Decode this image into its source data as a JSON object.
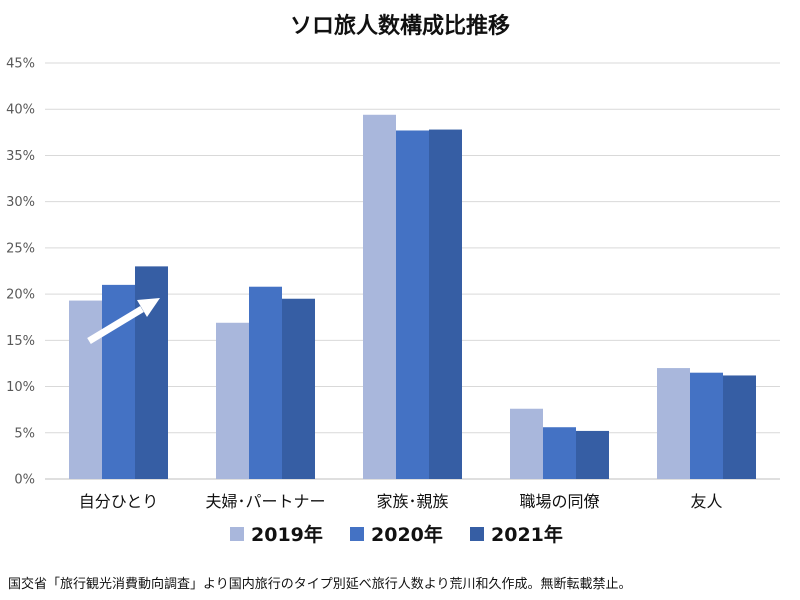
{
  "chart_data": {
    "type": "bar",
    "title": "ソロ旅人数構成比推移",
    "categories": [
      "自分ひとり",
      "夫婦･パートナー",
      "家族･親族",
      "職場の同僚",
      "友人"
    ],
    "series": [
      {
        "name": "2019年",
        "color": "#a9b7dc",
        "values": [
          19.3,
          16.9,
          39.4,
          7.6,
          12.0
        ]
      },
      {
        "name": "2020年",
        "color": "#4472c4",
        "values": [
          21.0,
          20.8,
          37.7,
          5.6,
          11.5
        ]
      },
      {
        "name": "2021年",
        "color": "#365ea4",
        "values": [
          23.0,
          19.5,
          37.8,
          5.2,
          11.2
        ]
      }
    ],
    "y_tick_labels": [
      "0%",
      "5%",
      "10%",
      "15%",
      "20%",
      "25%",
      "30%",
      "35%",
      "40%",
      "45%"
    ],
    "ylim": [
      0,
      45
    ],
    "y_unit": "%",
    "grid": true,
    "legend_position": "bottom",
    "annotation": "white arrow pointing up-right over 自分ひとり bars"
  },
  "footnote": "国交省「旅行観光消費動向調査」より国内旅行のタイプ別延べ旅行人数より荒川和久作成。無断転載禁止。"
}
